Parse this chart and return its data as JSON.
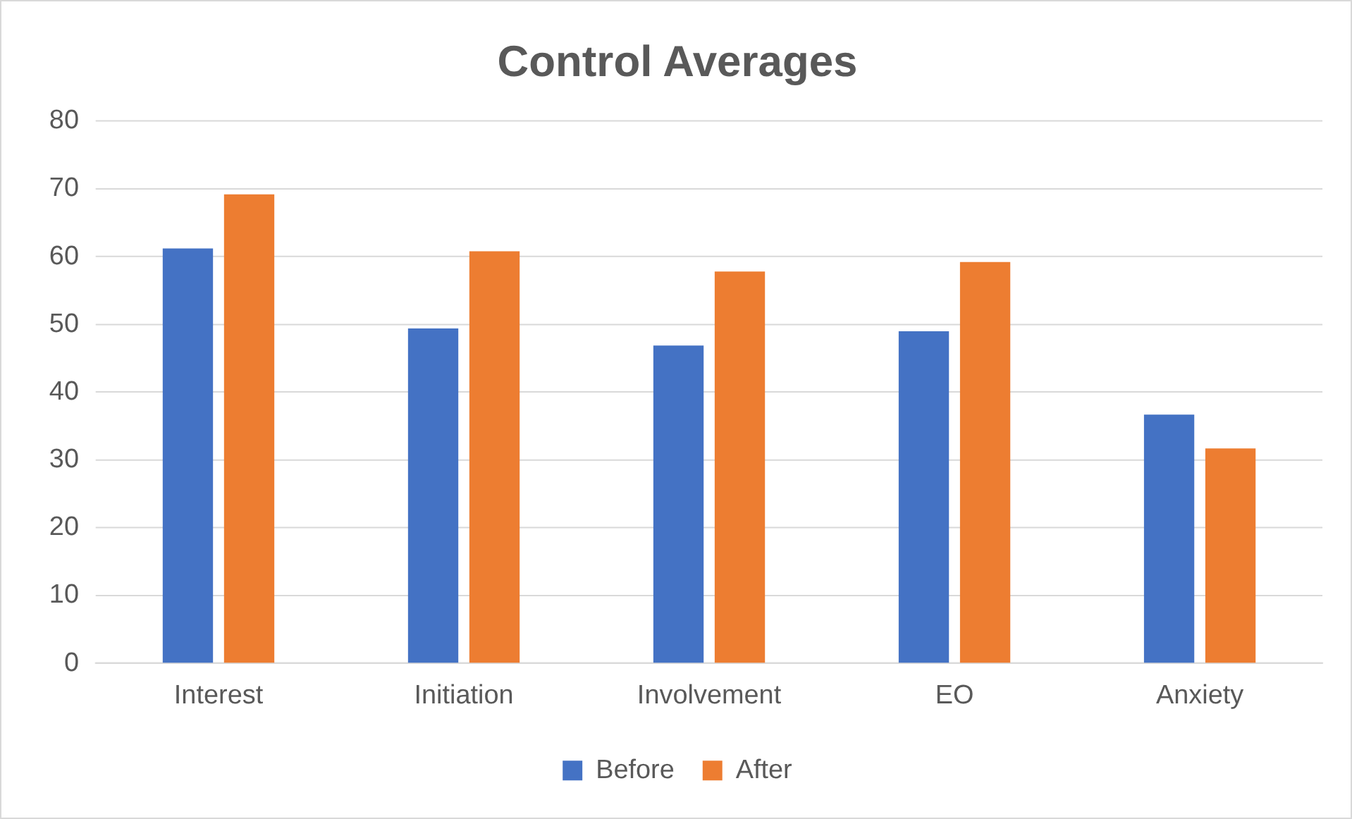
{
  "chart_data": {
    "type": "bar",
    "title": "Control Averages",
    "categories": [
      "Interest",
      "Initiation",
      "Involvement",
      "EO",
      "Anxiety"
    ],
    "series": [
      {
        "name": "Before",
        "color": "#4472c4",
        "values": [
          61.2,
          49.4,
          46.9,
          49.0,
          36.7
        ]
      },
      {
        "name": "After",
        "color": "#ed7d31",
        "values": [
          69.2,
          60.8,
          57.8,
          59.2,
          31.7
        ]
      }
    ],
    "ylim": [
      0,
      80
    ],
    "yticks": [
      0,
      10,
      20,
      30,
      40,
      50,
      60,
      70,
      80
    ],
    "grid": "y",
    "legend": "bottom"
  }
}
